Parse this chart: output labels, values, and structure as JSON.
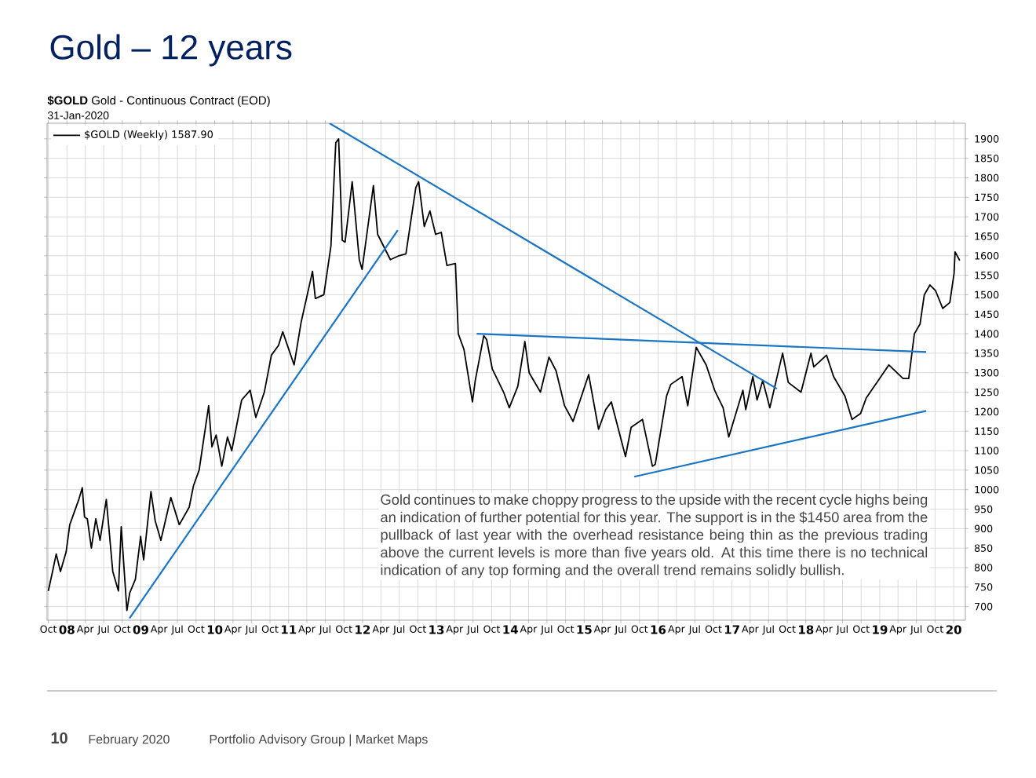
{
  "chart_data": {
    "type": "line",
    "title": "Gold – 12 years",
    "subtitle": "**$GOLD** Gold - Continuous Contract (EOD)",
    "annotations": [
      "31-Jan-2020",
      "Gold continues to make choppy progress to the upside with the recent cycle highs being an indication of further potential for this year. The support is in the $1450 area from the pullback of last year with the overhead resistance being thin as the previous trading above the current levels is more than five years old. At this time there is no technical indication of any top forming and the overall trend remains solidly bullish.",
      "10",
      "February 2020",
      "Portfolio Advisory Group  |  Market Maps"
    ],
    "xlim": [
      "2007-09-25",
      "2020-02-28"
    ],
    "ylim": [
      665,
      1940
    ],
    "xticks": [
      {
        "value": "2007-10",
        "label": "Oct"
      },
      {
        "value": "2008",
        "label": "08"
      },
      {
        "value": "2008-04",
        "label": "Apr"
      },
      {
        "value": "2008-07",
        "label": "Jul"
      },
      {
        "value": "2008-10",
        "label": "Oct"
      },
      {
        "value": "2009",
        "label": "09"
      },
      {
        "value": "2009-04",
        "label": "Apr"
      },
      {
        "value": "2009-07",
        "label": "Jul"
      },
      {
        "value": "2009-10",
        "label": "Oct"
      },
      {
        "value": "2010",
        "label": "10"
      },
      {
        "value": "2010-04",
        "label": "Apr"
      },
      {
        "value": "2010-07",
        "label": "Jul"
      },
      {
        "value": "2010-10",
        "label": "Oct"
      },
      {
        "value": "2011",
        "label": "11"
      },
      {
        "value": "2011-04",
        "label": "Apr"
      },
      {
        "value": "2011-07",
        "label": "Jul"
      },
      {
        "value": "2011-10",
        "label": "Oct"
      },
      {
        "value": "2012",
        "label": "12"
      },
      {
        "value": "2012-04",
        "label": "Apr"
      },
      {
        "value": "2012-07",
        "label": "Jul"
      },
      {
        "value": "2012-10",
        "label": "Oct"
      },
      {
        "value": "2013",
        "label": "13"
      },
      {
        "value": "2013-04",
        "label": "Apr"
      },
      {
        "value": "2013-07",
        "label": "Jul"
      },
      {
        "value": "2013-10",
        "label": "Oct"
      },
      {
        "value": "2014",
        "label": "14"
      },
      {
        "value": "2014-04",
        "label": "Apr"
      },
      {
        "value": "2014-07",
        "label": "Jul"
      },
      {
        "value": "2014-10",
        "label": "Oct"
      },
      {
        "value": "2015",
        "label": "15"
      },
      {
        "value": "2015-04",
        "label": "Apr"
      },
      {
        "value": "2015-07",
        "label": "Jul"
      },
      {
        "value": "2015-10",
        "label": "Oct"
      },
      {
        "value": "2016",
        "label": "16"
      },
      {
        "value": "2016-04",
        "label": "Apr"
      },
      {
        "value": "2016-07",
        "label": "Jul"
      },
      {
        "value": "2016-10",
        "label": "Oct"
      },
      {
        "value": "2017",
        "label": "17"
      },
      {
        "value": "2017-04",
        "label": "Apr"
      },
      {
        "value": "2017-07",
        "label": "Jul"
      },
      {
        "value": "2017-10",
        "label": "Oct"
      },
      {
        "value": "2018",
        "label": "18"
      },
      {
        "value": "2018-04",
        "label": "Apr"
      },
      {
        "value": "2018-07",
        "label": "Jul"
      },
      {
        "value": "2018-10",
        "label": "Oct"
      },
      {
        "value": "2019",
        "label": "19"
      },
      {
        "value": "2019-04",
        "label": "Apr"
      },
      {
        "value": "2019-07",
        "label": "Jul"
      },
      {
        "value": "2019-10",
        "label": "Oct"
      },
      {
        "value": "2020",
        "label": "20"
      }
    ],
    "yticks": [
      700,
      750,
      800,
      850,
      900,
      950,
      1000,
      1050,
      1100,
      1150,
      1200,
      1250,
      1300,
      1350,
      1400,
      1450,
      1500,
      1550,
      1600,
      1650,
      1700,
      1750,
      1800,
      1850,
      1900
    ],
    "grid": true,
    "legend": "top left",
    "series": [
      {
        "name": "$GOLD (Weekly) 1587.90",
        "color": "#000000",
        "x": [
          "2007-10-01",
          "2007-10-22",
          "2007-11-09",
          "2007-11-30",
          "2007-12-28",
          "2008-01-15",
          "2008-02-29",
          "2008-03-17",
          "2008-03-28",
          "2008-04-11",
          "2008-05-01",
          "2008-05-23",
          "2008-06-13",
          "2008-07-14",
          "2008-08-15",
          "2008-09-12",
          "2008-09-26",
          "2008-10-24",
          "2008-11-07",
          "2008-12-05",
          "2008-12-31",
          "2009-01-15",
          "2009-02-20",
          "2009-03-13",
          "2009-04-10",
          "2009-05-29",
          "2009-07-10",
          "2009-08-28",
          "2009-09-18",
          "2009-10-16",
          "2009-12-02",
          "2009-12-18",
          "2010-01-08",
          "2010-02-05",
          "2010-03-05",
          "2010-03-26",
          "2010-05-14",
          "2010-06-25",
          "2010-07-23",
          "2010-09-03",
          "2010-10-08",
          "2010-11-12",
          "2010-12-03",
          "2011-01-28",
          "2011-03-04",
          "2011-04-29",
          "2011-05-13",
          "2011-06-24",
          "2011-07-29",
          "2011-08-22",
          "2011-09-05",
          "2011-09-23",
          "2011-10-07",
          "2011-11-11",
          "2011-12-16",
          "2011-12-30",
          "2012-02-24",
          "2012-03-16",
          "2012-05-18",
          "2012-06-29",
          "2012-08-03",
          "2012-09-21",
          "2012-10-05",
          "2012-11-02",
          "2012-11-30",
          "2012-12-28",
          "2013-01-25",
          "2013-02-22",
          "2013-04-05",
          "2013-04-19",
          "2013-05-17",
          "2013-06-28",
          "2013-07-12",
          "2013-08-23",
          "2013-09-06",
          "2013-10-04",
          "2013-11-29",
          "2013-12-27",
          "2014-02-07",
          "2014-03-14",
          "2014-04-04",
          "2014-05-30",
          "2014-07-11",
          "2014-08-15",
          "2014-09-26",
          "2014-11-07",
          "2015-01-23",
          "2015-03-13",
          "2015-04-17",
          "2015-05-15",
          "2015-07-24",
          "2015-08-21",
          "2015-10-16",
          "2015-12-04",
          "2015-12-18",
          "2016-02-12",
          "2016-03-04",
          "2016-04-29",
          "2016-05-27",
          "2016-07-08",
          "2016-08-26",
          "2016-10-07",
          "2016-11-18",
          "2016-12-16",
          "2017-02-24",
          "2017-03-10",
          "2017-04-14",
          "2017-05-05",
          "2017-06-02",
          "2017-07-07",
          "2017-09-08",
          "2017-10-06",
          "2017-12-08",
          "2018-01-26",
          "2018-02-09",
          "2018-04-13",
          "2018-05-18",
          "2018-07-13",
          "2018-08-17",
          "2018-09-28",
          "2018-10-26",
          "2018-12-31",
          "2019-02-15",
          "2019-04-26",
          "2019-05-24",
          "2019-06-21",
          "2019-07-19",
          "2019-08-09",
          "2019-09-06",
          "2019-10-04",
          "2019-11-08",
          "2019-12-13",
          "2020-01-03",
          "2020-01-08",
          "2020-01-31"
        ],
        "values": [
          740,
          790,
          835,
          790,
          840,
          910,
          975,
          1005,
          930,
          925,
          850,
          925,
          870,
          975,
          790,
          740,
          905,
          690,
          735,
          770,
          880,
          820,
          995,
          920,
          870,
          980,
          910,
          955,
          1010,
          1050,
          1215,
          1110,
          1140,
          1060,
          1135,
          1100,
          1230,
          1255,
          1185,
          1250,
          1345,
          1370,
          1405,
          1320,
          1430,
          1560,
          1490,
          1500,
          1625,
          1890,
          1900,
          1640,
          1635,
          1790,
          1590,
          1565,
          1780,
          1655,
          1590,
          1600,
          1605,
          1775,
          1790,
          1675,
          1715,
          1655,
          1660,
          1575,
          1580,
          1400,
          1360,
          1225,
          1280,
          1395,
          1385,
          1310,
          1250,
          1210,
          1265,
          1380,
          1300,
          1250,
          1340,
          1305,
          1215,
          1175,
          1295,
          1155,
          1205,
          1225,
          1085,
          1160,
          1180,
          1060,
          1065,
          1240,
          1270,
          1290,
          1215,
          1365,
          1320,
          1255,
          1210,
          1135,
          1255,
          1205,
          1290,
          1230,
          1280,
          1210,
          1350,
          1275,
          1250,
          1350,
          1315,
          1345,
          1290,
          1240,
          1180,
          1195,
          1235,
          1285,
          1320,
          1285,
          1285,
          1400,
          1425,
          1500,
          1525,
          1510,
          1465,
          1480,
          1555,
          1610,
          1587.9
        ]
      },
      {
        "color": "#1a75c4",
        "x": [
          "2011-07-22",
          "2017-08-11"
        ],
        "values": [
          1940,
          1259
        ]
      },
      {
        "color": "#1a75c4",
        "x": [
          "2008-11-06",
          "2012-06-24"
        ],
        "values": [
          670,
          1666
        ]
      },
      {
        "color": "#1a75c4",
        "x": [
          "2013-07-19",
          "2019-08-18"
        ],
        "values": [
          1400,
          1353
        ]
      },
      {
        "color": "#1a75c4",
        "x": [
          "2015-09-05",
          "2019-08-18"
        ],
        "values": [
          1033,
          1202
        ]
      }
    ]
  }
}
